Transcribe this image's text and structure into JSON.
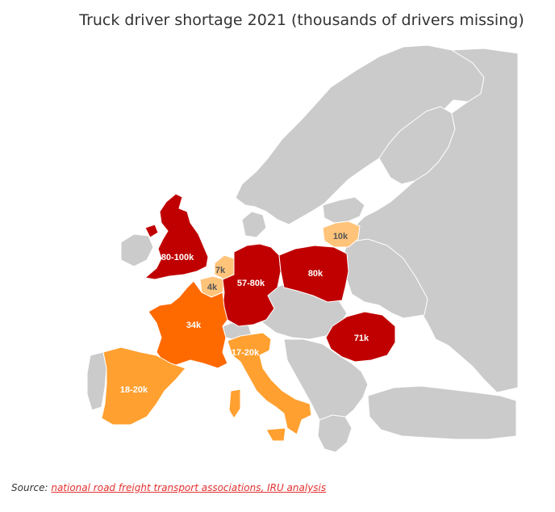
{
  "title": "Truck driver shortage 2021 (thousands of drivers missing)",
  "source": {
    "prefix": "Source: ",
    "link_text": "national road freight transport associations, IRU analysis "
  },
  "colors": {
    "background_land": "#cbcbcb",
    "border": "#ffffff",
    "dark_red": "#c00000",
    "orange": "#ff6a00",
    "light_orange": "#ffa030",
    "pale_orange": "#ffc47a",
    "link": "#e2312f"
  },
  "countries": [
    {
      "name": "United Kingdom",
      "value": "80-100k",
      "color": "#c00000",
      "text_color": "#ffffff"
    },
    {
      "name": "Netherlands",
      "value": "7k",
      "color": "#ffc47a",
      "text_color": "#555555"
    },
    {
      "name": "Belgium",
      "value": "4k",
      "color": "#ffc47a",
      "text_color": "#555555"
    },
    {
      "name": "Germany",
      "value": "57-80k",
      "color": "#c00000",
      "text_color": "#ffffff"
    },
    {
      "name": "Poland",
      "value": "80k",
      "color": "#c00000",
      "text_color": "#ffffff"
    },
    {
      "name": "Lithuania",
      "value": "10k",
      "color": "#ffc47a",
      "text_color": "#555555"
    },
    {
      "name": "France",
      "value": "34k",
      "color": "#ff6a00",
      "text_color": "#ffffff"
    },
    {
      "name": "Italy",
      "value": "17-20k",
      "color": "#ffa030",
      "text_color": "#ffffff"
    },
    {
      "name": "Spain",
      "value": "18-20k",
      "color": "#ffa030",
      "text_color": "#ffffff"
    },
    {
      "name": "Romania",
      "value": "71k",
      "color": "#c00000",
      "text_color": "#ffffff"
    }
  ]
}
